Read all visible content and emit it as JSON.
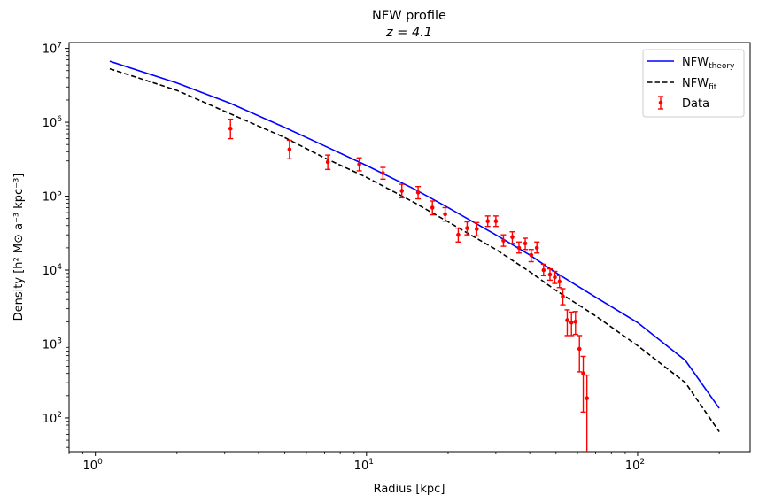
{
  "chart_data": {
    "type": "line",
    "title": "NFW profile",
    "subtitle": "z = 4.1",
    "xlabel": "Radius [kpc]",
    "ylabel": "Density [h² M⊙ a⁻³ kpc⁻³]",
    "xscale": "log",
    "yscale": "log",
    "xlim": [
      0.8,
      260
    ],
    "ylim": [
      35,
      12000000
    ],
    "x_ticks": [
      {
        "value": 1,
        "label": "10",
        "exp": "0"
      },
      {
        "value": 10,
        "label": "10",
        "exp": "1"
      },
      {
        "value": 100,
        "label": "10",
        "exp": "2"
      }
    ],
    "y_ticks": [
      {
        "value": 100,
        "label": "10",
        "exp": "2"
      },
      {
        "value": 1000,
        "label": "10",
        "exp": "3"
      },
      {
        "value": 10000,
        "label": "10",
        "exp": "4"
      },
      {
        "value": 100000,
        "label": "10",
        "exp": "5"
      },
      {
        "value": 1000000,
        "label": "10",
        "exp": "6"
      },
      {
        "value": 10000000,
        "label": "10",
        "exp": "7"
      }
    ],
    "legend_position": "top-right",
    "grid": false,
    "series": [
      {
        "name": "NFW_theory",
        "legend_base": "NFW",
        "legend_sub": "theory",
        "color": "#0000ff",
        "style": "solid",
        "points": [
          [
            1.13,
            6700000
          ],
          [
            2,
            3400000
          ],
          [
            3.15,
            1800000
          ],
          [
            5,
            850000
          ],
          [
            7,
            480000
          ],
          [
            10,
            260000
          ],
          [
            15,
            125000
          ],
          [
            20,
            70000
          ],
          [
            30,
            30000
          ],
          [
            40,
            16000
          ],
          [
            50,
            9200
          ],
          [
            70,
            4300
          ],
          [
            100,
            1950
          ],
          [
            150,
            600
          ],
          [
            200,
            135
          ]
        ]
      },
      {
        "name": "NFW_fit",
        "legend_base": "NFW",
        "legend_sub": "fit",
        "color": "#000000",
        "style": "dashed",
        "points": [
          [
            1.13,
            5300000
          ],
          [
            2,
            2700000
          ],
          [
            3.15,
            1300000
          ],
          [
            5,
            620000
          ],
          [
            7,
            330000
          ],
          [
            10,
            180000
          ],
          [
            15,
            82000
          ],
          [
            20,
            45000
          ],
          [
            30,
            19000
          ],
          [
            40,
            9500
          ],
          [
            50,
            5300
          ],
          [
            70,
            2400
          ],
          [
            100,
            950
          ],
          [
            150,
            300
          ],
          [
            200,
            65
          ]
        ]
      },
      {
        "name": "Data",
        "legend_label": "Data",
        "color": "#ff0000",
        "style": "errorbar",
        "points": [
          [
            3.15,
            820000,
            600000,
            1100000
          ],
          [
            5.2,
            430000,
            320000,
            570000
          ],
          [
            7.2,
            290000,
            230000,
            360000
          ],
          [
            9.4,
            270000,
            220000,
            330000
          ],
          [
            11.5,
            205000,
            170000,
            245000
          ],
          [
            13.5,
            118000,
            95000,
            145000
          ],
          [
            15.5,
            112000,
            92000,
            135000
          ],
          [
            17.5,
            70000,
            56000,
            86000
          ],
          [
            19.5,
            57000,
            46000,
            70000
          ],
          [
            21.8,
            30000,
            24000,
            37000
          ],
          [
            23.5,
            37000,
            30000,
            45000
          ],
          [
            25.5,
            36000,
            29000,
            44000
          ],
          [
            28,
            46000,
            39000,
            54000
          ],
          [
            30,
            46000,
            39000,
            54000
          ],
          [
            32,
            25000,
            21000,
            30000
          ],
          [
            34.5,
            28000,
            23000,
            33000
          ],
          [
            36.5,
            20000,
            17000,
            24000
          ],
          [
            38.5,
            23000,
            19000,
            27000
          ],
          [
            40.5,
            16000,
            13000,
            19000
          ],
          [
            42.5,
            20000,
            17000,
            24000
          ],
          [
            45,
            10000,
            8400,
            12000
          ],
          [
            47.5,
            8700,
            7300,
            10400
          ],
          [
            49.5,
            8000,
            6600,
            9600
          ],
          [
            51.5,
            7000,
            5800,
            8400
          ],
          [
            53,
            4400,
            3400,
            5600
          ],
          [
            55,
            2100,
            1300,
            2900
          ],
          [
            57,
            1950,
            1300,
            2700
          ],
          [
            59,
            2000,
            1350,
            2750
          ],
          [
            61,
            860,
            420,
            1300
          ],
          [
            63,
            400,
            120,
            680
          ],
          [
            65,
            185,
            10,
            380
          ]
        ]
      }
    ]
  }
}
